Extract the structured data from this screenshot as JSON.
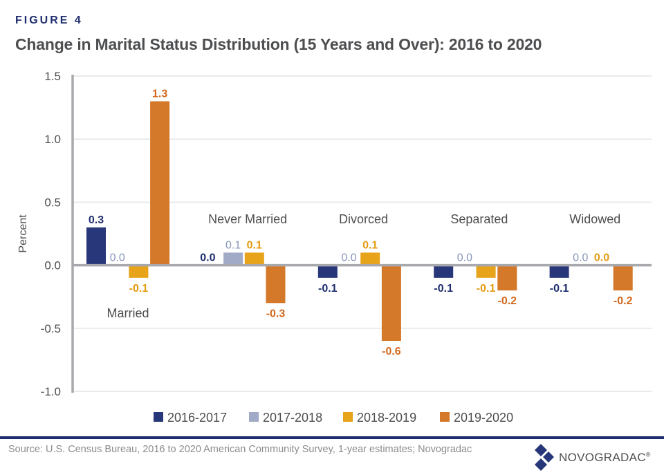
{
  "figure_label": "FIGURE 4",
  "title": "Change in Marital Status Distribution (15 Years and Over): 2016 to 2020",
  "source": "Source: U.S. Census Bureau, 2016 to 2020 American Community Survey, 1-year estimates; Novogradac",
  "logo": {
    "text": "NOVOGRADAC",
    "reg": "®",
    "icon": "diamond-logo-icon"
  },
  "colors": {
    "brand_navy": "#1e2d6e",
    "axis": "#a7a9ac",
    "grid": "#e3e4e5",
    "text": "#4d4e50"
  },
  "chart_data": {
    "type": "bar",
    "title": "Change in Marital Status Distribution (15 Years and Over): 2016 to 2020",
    "xlabel": "",
    "ylabel": "Percent",
    "ylim": [
      -1.0,
      1.5
    ],
    "yticks": [
      1.5,
      1.0,
      0.5,
      0.0,
      -0.5,
      -1.0
    ],
    "ytick_labels": [
      "1.5",
      "1.0",
      "0.5",
      "0.0",
      "-0.5",
      "-1.0"
    ],
    "grid": true,
    "legend_position": "bottom",
    "categories": [
      "Married",
      "Never Married",
      "Divorced",
      "Separated",
      "Widowed"
    ],
    "category_label_positions": [
      "below-axis",
      "above",
      "above",
      "above",
      "above"
    ],
    "series": [
      {
        "name": "2016-2017",
        "color": "#283779",
        "label_color": "#1e2d6e",
        "values": [
          0.3,
          0.0,
          -0.1,
          -0.1,
          -0.1
        ],
        "labels": [
          "0.3",
          "0.0",
          "-0.1",
          "-0.1",
          "-0.1"
        ]
      },
      {
        "name": "2017-2018",
        "color": "#a1abc7",
        "label_color": "#8795b8",
        "values": [
          0.0,
          0.1,
          0.0,
          0.0,
          0.0
        ],
        "labels": [
          "0.0",
          "0.1",
          "0.0",
          "0.0",
          "0.0"
        ]
      },
      {
        "name": "2018-2019",
        "color": "#e7a319",
        "label_color": "#e39b0f",
        "values": [
          -0.1,
          0.1,
          0.1,
          -0.1,
          0.0
        ],
        "labels": [
          "-0.1",
          "0.1",
          "0.1",
          "-0.1",
          "0.0"
        ]
      },
      {
        "name": "2019-2020",
        "color": "#d4782a",
        "label_color": "#d2691e",
        "values": [
          1.3,
          -0.3,
          -0.6,
          -0.2,
          -0.2
        ],
        "labels": [
          "1.3",
          "-0.3",
          "-0.6",
          "-0.2",
          "-0.2"
        ]
      }
    ]
  }
}
